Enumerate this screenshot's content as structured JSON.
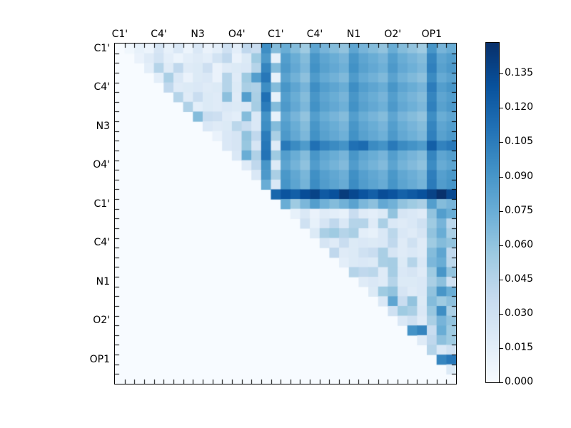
{
  "figure": {
    "background": "#ffffff",
    "spine_color": "#000000"
  },
  "chart_data": {
    "type": "heatmap",
    "title": "",
    "grid_size": 35,
    "triangle": "upper",
    "x_tick_labels": [
      "C1'",
      "C4'",
      "N3",
      "O4'",
      "C1'",
      "C4'",
      "N1",
      "O2'",
      "OP1"
    ],
    "y_tick_labels": [
      "C1'",
      "C4'",
      "N3",
      "O4'",
      "C1'",
      "C4'",
      "N1",
      "O2'",
      "OP1"
    ],
    "tick_label_cells": [
      0,
      4,
      8,
      12,
      16,
      20,
      24,
      28,
      32
    ],
    "minor_ticks_every_cell": true,
    "colormap": "Blues",
    "colormap_stops": [
      "#f7fbff",
      "#deebf7",
      "#c6dbef",
      "#9ecae1",
      "#6baed6",
      "#4292c6",
      "#2171b5",
      "#08519c",
      "#08306b"
    ],
    "vmin": 0.0,
    "vmax": 0.1485,
    "colorbar": {
      "position": "right",
      "tick_values": [
        0.0,
        0.015,
        0.03,
        0.045,
        0.06,
        0.075,
        0.09,
        0.105,
        0.12,
        0.135
      ],
      "tick_labels": [
        "0.000",
        "0.015",
        "0.030",
        "0.045",
        "0.060",
        "0.075",
        "0.090",
        "0.105",
        "0.120",
        "0.135"
      ]
    },
    "matrix": [
      [
        0,
        0.005,
        0.012,
        0.008,
        0.025,
        0.012,
        0.022,
        0.008,
        0.022,
        0.01,
        0.015,
        0.03,
        0.015,
        0.04,
        0.035,
        0.095,
        0.065,
        0.075,
        0.065,
        0.055,
        0.08,
        0.07,
        0.065,
        0.06,
        0.08,
        0.07,
        0.065,
        0.06,
        0.075,
        0.065,
        0.06,
        0.055,
        0.09,
        0.07,
        0.075
      ],
      [
        0,
        0,
        0.01,
        0.018,
        0.028,
        0.015,
        0.008,
        0.015,
        0.018,
        0.015,
        0.028,
        0.04,
        0.01,
        0.02,
        0.055,
        0.088,
        0.012,
        0.085,
        0.075,
        0.065,
        0.09,
        0.08,
        0.075,
        0.07,
        0.09,
        0.08,
        0.075,
        0.07,
        0.085,
        0.075,
        0.07,
        0.065,
        0.1,
        0.08,
        0.085
      ],
      [
        0,
        0,
        0,
        0.015,
        0.045,
        0.018,
        0.04,
        0.018,
        0.02,
        0.032,
        0.01,
        0.018,
        0.02,
        0.022,
        0.045,
        0.1,
        0.065,
        0.088,
        0.078,
        0.068,
        0.093,
        0.083,
        0.078,
        0.073,
        0.093,
        0.083,
        0.078,
        0.073,
        0.088,
        0.078,
        0.073,
        0.068,
        0.103,
        0.083,
        0.088
      ],
      [
        0,
        0,
        0,
        0,
        0.015,
        0.05,
        0.022,
        0.01,
        0.02,
        0.022,
        0.01,
        0.045,
        0.018,
        0.055,
        0.085,
        0.108,
        0.012,
        0.082,
        0.072,
        0.062,
        0.087,
        0.077,
        0.072,
        0.067,
        0.087,
        0.077,
        0.072,
        0.067,
        0.082,
        0.072,
        0.067,
        0.062,
        0.097,
        0.077,
        0.082
      ],
      [
        0,
        0,
        0,
        0,
        0,
        0.04,
        0.018,
        0.02,
        0.022,
        0.018,
        0.02,
        0.045,
        0.02,
        0.05,
        0.048,
        0.095,
        0.065,
        0.09,
        0.08,
        0.07,
        0.095,
        0.085,
        0.08,
        0.075,
        0.095,
        0.085,
        0.08,
        0.075,
        0.09,
        0.08,
        0.075,
        0.07,
        0.105,
        0.085,
        0.09
      ],
      [
        0,
        0,
        0,
        0,
        0,
        0,
        0.045,
        0.018,
        0.035,
        0.02,
        0.018,
        0.062,
        0.018,
        0.085,
        0.05,
        0.112,
        0.012,
        0.085,
        0.075,
        0.065,
        0.09,
        0.08,
        0.075,
        0.07,
        0.09,
        0.08,
        0.075,
        0.07,
        0.085,
        0.075,
        0.07,
        0.065,
        0.1,
        0.08,
        0.085
      ],
      [
        0,
        0,
        0,
        0,
        0,
        0,
        0,
        0.048,
        0.015,
        0.02,
        0.018,
        0.022,
        0.02,
        0.022,
        0.052,
        0.105,
        0.065,
        0.088,
        0.078,
        0.068,
        0.093,
        0.083,
        0.078,
        0.073,
        0.093,
        0.083,
        0.078,
        0.073,
        0.088,
        0.078,
        0.073,
        0.068,
        0.103,
        0.083,
        0.088
      ],
      [
        0,
        0,
        0,
        0,
        0,
        0,
        0,
        0,
        0.065,
        0.035,
        0.032,
        0.018,
        0.015,
        0.065,
        0.022,
        0.092,
        0.012,
        0.08,
        0.07,
        0.06,
        0.085,
        0.075,
        0.07,
        0.065,
        0.085,
        0.075,
        0.07,
        0.065,
        0.08,
        0.07,
        0.065,
        0.06,
        0.095,
        0.075,
        0.08
      ],
      [
        0,
        0,
        0,
        0,
        0,
        0,
        0,
        0,
        0,
        0.022,
        0.018,
        0.02,
        0.042,
        0.035,
        0.022,
        0.095,
        0.065,
        0.085,
        0.075,
        0.065,
        0.09,
        0.08,
        0.075,
        0.07,
        0.09,
        0.08,
        0.075,
        0.07,
        0.085,
        0.075,
        0.07,
        0.065,
        0.1,
        0.08,
        0.085
      ],
      [
        0,
        0,
        0,
        0,
        0,
        0,
        0,
        0,
        0,
        0,
        0.01,
        0.022,
        0.025,
        0.06,
        0.04,
        0.105,
        0.05,
        0.088,
        0.078,
        0.068,
        0.093,
        0.083,
        0.078,
        0.073,
        0.093,
        0.083,
        0.078,
        0.073,
        0.088,
        0.078,
        0.073,
        0.068,
        0.103,
        0.083,
        0.088
      ],
      [
        0,
        0,
        0,
        0,
        0,
        0,
        0,
        0,
        0,
        0,
        0,
        0.022,
        0.025,
        0.058,
        0.025,
        0.108,
        0.018,
        0.107,
        0.097,
        0.087,
        0.112,
        0.102,
        0.097,
        0.092,
        0.112,
        0.115,
        0.097,
        0.092,
        0.107,
        0.097,
        0.092,
        0.087,
        0.122,
        0.102,
        0.107
      ],
      [
        0,
        0,
        0,
        0,
        0,
        0,
        0,
        0,
        0,
        0,
        0,
        0,
        0.022,
        0.075,
        0.048,
        0.11,
        0.055,
        0.085,
        0.075,
        0.065,
        0.09,
        0.08,
        0.075,
        0.07,
        0.09,
        0.08,
        0.075,
        0.07,
        0.085,
        0.075,
        0.07,
        0.065,
        0.1,
        0.08,
        0.085
      ],
      [
        0,
        0,
        0,
        0,
        0,
        0,
        0,
        0,
        0,
        0,
        0,
        0,
        0,
        0.018,
        0.04,
        0.09,
        0.02,
        0.081,
        0.071,
        0.061,
        0.086,
        0.076,
        0.071,
        0.066,
        0.086,
        0.076,
        0.071,
        0.066,
        0.081,
        0.071,
        0.066,
        0.061,
        0.096,
        0.076,
        0.081
      ],
      [
        0,
        0,
        0,
        0,
        0,
        0,
        0,
        0,
        0,
        0,
        0,
        0,
        0,
        0,
        0.022,
        0.088,
        0.05,
        0.089,
        0.079,
        0.069,
        0.094,
        0.084,
        0.079,
        0.074,
        0.094,
        0.084,
        0.079,
        0.074,
        0.089,
        0.079,
        0.074,
        0.069,
        0.104,
        0.084,
        0.089
      ],
      [
        0,
        0,
        0,
        0,
        0,
        0,
        0,
        0,
        0,
        0,
        0,
        0,
        0,
        0,
        0,
        0.075,
        0.022,
        0.091,
        0.081,
        0.071,
        0.096,
        0.086,
        0.081,
        0.076,
        0.096,
        0.086,
        0.081,
        0.076,
        0.091,
        0.081,
        0.076,
        0.071,
        0.106,
        0.086,
        0.091
      ],
      [
        0,
        0,
        0,
        0,
        0,
        0,
        0,
        0,
        0,
        0,
        0,
        0,
        0,
        0,
        0,
        0,
        0.118,
        0.128,
        0.122,
        0.132,
        0.138,
        0.125,
        0.13,
        0.142,
        0.135,
        0.128,
        0.122,
        0.132,
        0.128,
        0.12,
        0.125,
        0.13,
        0.138,
        0.148,
        0.135
      ],
      [
        0,
        0,
        0,
        0,
        0,
        0,
        0,
        0,
        0,
        0,
        0,
        0,
        0,
        0,
        0,
        0,
        0,
        0.075,
        0.055,
        0.068,
        0.085,
        0.072,
        0.065,
        0.072,
        0.082,
        0.068,
        0.062,
        0.078,
        0.072,
        0.06,
        0.055,
        0.05,
        0.085,
        0.065,
        0.07
      ],
      [
        0,
        0,
        0,
        0,
        0,
        0,
        0,
        0,
        0,
        0,
        0,
        0,
        0,
        0,
        0,
        0,
        0,
        0,
        0.012,
        0.022,
        0.01,
        0.018,
        0.015,
        0.012,
        0.035,
        0.018,
        0.015,
        0.02,
        0.06,
        0.025,
        0.022,
        0.018,
        0.06,
        0.085,
        0.075
      ],
      [
        0,
        0,
        0,
        0,
        0,
        0,
        0,
        0,
        0,
        0,
        0,
        0,
        0,
        0,
        0,
        0,
        0,
        0,
        0,
        0.03,
        0.012,
        0.025,
        0.04,
        0.022,
        0.045,
        0.045,
        0.018,
        0.05,
        0.022,
        0.018,
        0.022,
        0.03,
        0.055,
        0.07,
        0.042
      ],
      [
        0,
        0,
        0,
        0,
        0,
        0,
        0,
        0,
        0,
        0,
        0,
        0,
        0,
        0,
        0,
        0,
        0,
        0,
        0,
        0,
        0.02,
        0.05,
        0.055,
        0.045,
        0.05,
        0.015,
        0.012,
        0.022,
        0.042,
        0.022,
        0.018,
        0.025,
        0.06,
        0.075,
        0.05
      ],
      [
        0,
        0,
        0,
        0,
        0,
        0,
        0,
        0,
        0,
        0,
        0,
        0,
        0,
        0,
        0,
        0,
        0,
        0,
        0,
        0,
        0,
        0.025,
        0.018,
        0.035,
        0.02,
        0.022,
        0.02,
        0.022,
        0.04,
        0.018,
        0.03,
        0.018,
        0.055,
        0.065,
        0.06
      ],
      [
        0,
        0,
        0,
        0,
        0,
        0,
        0,
        0,
        0,
        0,
        0,
        0,
        0,
        0,
        0,
        0,
        0,
        0,
        0,
        0,
        0,
        0,
        0.04,
        0.018,
        0.02,
        0.03,
        0.035,
        0.05,
        0.025,
        0.018,
        0.022,
        0.018,
        0.065,
        0.08,
        0.04
      ],
      [
        0,
        0,
        0,
        0,
        0,
        0,
        0,
        0,
        0,
        0,
        0,
        0,
        0,
        0,
        0,
        0,
        0,
        0,
        0,
        0,
        0,
        0,
        0,
        0.015,
        0.02,
        0.022,
        0.02,
        0.05,
        0.052,
        0.02,
        0.045,
        0.022,
        0.068,
        0.075,
        0.042
      ],
      [
        0,
        0,
        0,
        0,
        0,
        0,
        0,
        0,
        0,
        0,
        0,
        0,
        0,
        0,
        0,
        0,
        0,
        0,
        0,
        0,
        0,
        0,
        0,
        0,
        0.045,
        0.04,
        0.042,
        0.018,
        0.052,
        0.022,
        0.025,
        0.018,
        0.055,
        0.09,
        0.06
      ],
      [
        0,
        0,
        0,
        0,
        0,
        0,
        0,
        0,
        0,
        0,
        0,
        0,
        0,
        0,
        0,
        0,
        0,
        0,
        0,
        0,
        0,
        0,
        0,
        0,
        0,
        0.018,
        0.022,
        0.018,
        0.045,
        0.02,
        0.02,
        0.022,
        0.05,
        0.062,
        0.03
      ],
      [
        0,
        0,
        0,
        0,
        0,
        0,
        0,
        0,
        0,
        0,
        0,
        0,
        0,
        0,
        0,
        0,
        0,
        0,
        0,
        0,
        0,
        0,
        0,
        0,
        0,
        0,
        0.02,
        0.055,
        0.06,
        0.025,
        0.018,
        0.022,
        0.06,
        0.09,
        0.075
      ],
      [
        0,
        0,
        0,
        0,
        0,
        0,
        0,
        0,
        0,
        0,
        0,
        0,
        0,
        0,
        0,
        0,
        0,
        0,
        0,
        0,
        0,
        0,
        0,
        0,
        0,
        0,
        0,
        0.022,
        0.08,
        0.035,
        0.06,
        0.02,
        0.065,
        0.055,
        0.062
      ],
      [
        0,
        0,
        0,
        0,
        0,
        0,
        0,
        0,
        0,
        0,
        0,
        0,
        0,
        0,
        0,
        0,
        0,
        0,
        0,
        0,
        0,
        0,
        0,
        0,
        0,
        0,
        0,
        0,
        0.03,
        0.055,
        0.05,
        0.022,
        0.058,
        0.095,
        0.05
      ],
      [
        0,
        0,
        0,
        0,
        0,
        0,
        0,
        0,
        0,
        0,
        0,
        0,
        0,
        0,
        0,
        0,
        0,
        0,
        0,
        0,
        0,
        0,
        0,
        0,
        0,
        0,
        0,
        0,
        0,
        0.022,
        0.03,
        0.018,
        0.05,
        0.07,
        0.06
      ],
      [
        0,
        0,
        0,
        0,
        0,
        0,
        0,
        0,
        0,
        0,
        0,
        0,
        0,
        0,
        0,
        0,
        0,
        0,
        0,
        0,
        0,
        0,
        0,
        0,
        0,
        0,
        0,
        0,
        0,
        0,
        0.092,
        0.1,
        0.035,
        0.075,
        0.055
      ],
      [
        0,
        0,
        0,
        0,
        0,
        0,
        0,
        0,
        0,
        0,
        0,
        0,
        0,
        0,
        0,
        0,
        0,
        0,
        0,
        0,
        0,
        0,
        0,
        0,
        0,
        0,
        0,
        0,
        0,
        0,
        0,
        0.018,
        0.04,
        0.062,
        0.055
      ],
      [
        0,
        0,
        0,
        0,
        0,
        0,
        0,
        0,
        0,
        0,
        0,
        0,
        0,
        0,
        0,
        0,
        0,
        0,
        0,
        0,
        0,
        0,
        0,
        0,
        0,
        0,
        0,
        0,
        0,
        0,
        0,
        0,
        0.045,
        0.022,
        0.03
      ],
      [
        0,
        0,
        0,
        0,
        0,
        0,
        0,
        0,
        0,
        0,
        0,
        0,
        0,
        0,
        0,
        0,
        0,
        0,
        0,
        0,
        0,
        0,
        0,
        0,
        0,
        0,
        0,
        0,
        0,
        0,
        0,
        0,
        0,
        0.1,
        0.108
      ],
      [
        0,
        0,
        0,
        0,
        0,
        0,
        0,
        0,
        0,
        0,
        0,
        0,
        0,
        0,
        0,
        0,
        0,
        0,
        0,
        0,
        0,
        0,
        0,
        0,
        0,
        0,
        0,
        0,
        0,
        0,
        0,
        0,
        0,
        0,
        0.02
      ],
      [
        0,
        0,
        0,
        0,
        0,
        0,
        0,
        0,
        0,
        0,
        0,
        0,
        0,
        0,
        0,
        0,
        0,
        0,
        0,
        0,
        0,
        0,
        0,
        0,
        0,
        0,
        0,
        0,
        0,
        0,
        0,
        0,
        0,
        0,
        0
      ]
    ]
  }
}
